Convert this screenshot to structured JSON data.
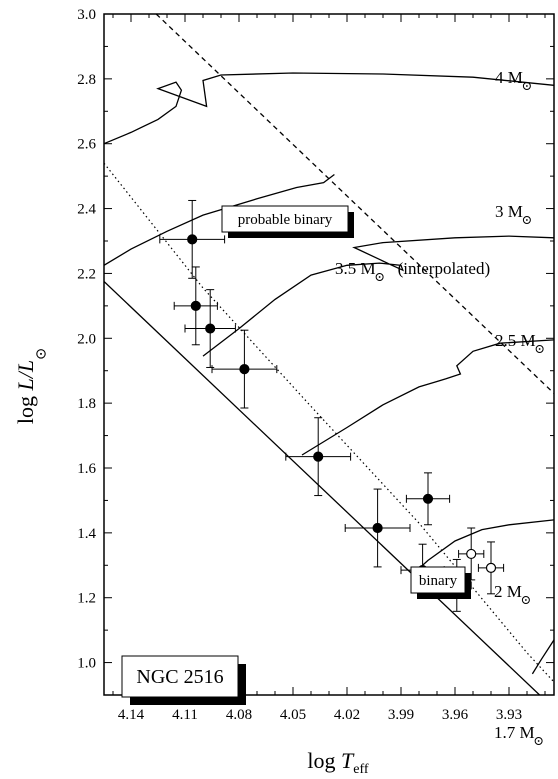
{
  "chart_data": {
    "type": "scatter",
    "title": "",
    "xlabel": {
      "main": "log ",
      "symbol": "T",
      "sub": "eff"
    },
    "ylabel": {
      "main": "log ",
      "symbol": "L/L",
      "sub": "⊙"
    },
    "xlim": [
      4.155,
      3.905
    ],
    "ylim": [
      0.9,
      3.0
    ],
    "x_reversed": true,
    "grid": false,
    "xticks": [
      "4.14",
      "4.11",
      "4.08",
      "4.05",
      "4.02",
      "3.99",
      "3.96",
      "3.93"
    ],
    "yticks": [
      "1.0",
      "1.2",
      "1.4",
      "1.6",
      "1.8",
      "2.0",
      "2.2",
      "2.4",
      "2.6",
      "2.8",
      "3.0"
    ],
    "cluster_label": "NGC 2516",
    "annotations": [
      {
        "text": "probable binary"
      },
      {
        "text": "binary"
      }
    ],
    "track_labels": [
      {
        "mass": "4",
        "unit": "M",
        "note": ""
      },
      {
        "mass": "3.5",
        "unit": "M",
        "note": "(interpolated)"
      },
      {
        "mass": "3",
        "unit": "M",
        "note": ""
      },
      {
        "mass": "2.5",
        "unit": "M",
        "note": ""
      },
      {
        "mass": "2",
        "unit": "M",
        "note": ""
      },
      {
        "mass": "1.7",
        "unit": "M",
        "note": ""
      }
    ],
    "series": [
      {
        "marker": "filled",
        "points": [
          {
            "x": 4.106,
            "y": 2.305,
            "xerr": 0.018,
            "yerr": 0.12
          },
          {
            "x": 4.104,
            "y": 2.1,
            "xerr": 0.012,
            "yerr": 0.12
          },
          {
            "x": 4.096,
            "y": 2.03,
            "xerr": 0.014,
            "yerr": 0.12
          },
          {
            "x": 4.077,
            "y": 1.905,
            "xerr": 0.018,
            "yerr": 0.12
          },
          {
            "x": 4.036,
            "y": 1.635,
            "xerr": 0.018,
            "yerr": 0.12
          },
          {
            "x": 4.003,
            "y": 1.415,
            "xerr": 0.018,
            "yerr": 0.12
          },
          {
            "x": 3.975,
            "y": 1.505,
            "xerr": 0.012,
            "yerr": 0.08
          },
          {
            "x": 3.978,
            "y": 1.285,
            "xerr": 0.012,
            "yerr": 0.08
          }
        ]
      },
      {
        "marker": "open",
        "points": [
          {
            "x": 3.951,
            "y": 1.335,
            "xerr": 0.007,
            "yerr": 0.08
          },
          {
            "x": 3.94,
            "y": 1.292,
            "xerr": 0.007,
            "yerr": 0.08
          },
          {
            "x": 3.959,
            "y": 1.238,
            "xerr": 0.008,
            "yerr": 0.08
          }
        ]
      }
    ],
    "lines": [
      {
        "kind": "zams",
        "style": "solid",
        "x": [
          4.155,
          3.913
        ],
        "y": [
          2.175,
          0.9
        ]
      },
      {
        "kind": "upper-limit",
        "style": "dashed",
        "x": [
          4.126,
          3.905
        ],
        "y": [
          3.0,
          1.83
        ]
      },
      {
        "kind": "dotted-sequence",
        "style": "dotted",
        "x": [
          4.155,
          4.1,
          4.04,
          3.98,
          3.92,
          3.905
        ],
        "y": [
          2.54,
          2.155,
          1.79,
          1.43,
          1.03,
          0.94
        ]
      },
      {
        "kind": "track-4",
        "style": "solid",
        "x": [
          4.155,
          4.14,
          4.125,
          4.115,
          4.112,
          4.115,
          4.125,
          4.098,
          4.1,
          4.09,
          4.05,
          4.0,
          3.95,
          3.905
        ],
        "y": [
          2.6,
          2.635,
          2.675,
          2.715,
          2.765,
          2.79,
          2.77,
          2.715,
          2.795,
          2.812,
          2.818,
          2.815,
          2.805,
          2.78
        ]
      },
      {
        "kind": "track-3",
        "style": "solid",
        "x": [
          4.155,
          4.14,
          4.12,
          4.1,
          4.07,
          4.048,
          4.033,
          4.027
        ],
        "y": [
          2.225,
          2.275,
          2.33,
          2.38,
          2.43,
          2.465,
          2.48,
          2.505
        ]
      },
      {
        "kind": "track-2_5",
        "style": "solid",
        "x": [
          4.1,
          4.08,
          4.06,
          4.04,
          4.02,
          4.002,
          3.99,
          3.989,
          3.995,
          4.016,
          4.0,
          3.96,
          3.93,
          3.905
        ],
        "y": [
          1.945,
          2.03,
          2.12,
          2.195,
          2.225,
          2.232,
          2.225,
          2.21,
          2.225,
          2.28,
          2.295,
          2.31,
          2.315,
          2.31
        ]
      },
      {
        "kind": "track-2",
        "style": "solid",
        "x": [
          4.045,
          4.02,
          4.0,
          3.98,
          3.965,
          3.957,
          3.959,
          3.95,
          3.935,
          3.905
        ],
        "y": [
          1.64,
          1.725,
          1.795,
          1.85,
          1.875,
          1.89,
          1.915,
          1.96,
          1.985,
          1.995
        ]
      },
      {
        "kind": "track-1_7",
        "style": "solid",
        "x": [
          3.984,
          3.975,
          3.96,
          3.945,
          3.93,
          3.905
        ],
        "y": [
          1.27,
          1.315,
          1.375,
          1.41,
          1.425,
          1.44
        ]
      },
      {
        "kind": "track-low",
        "style": "solid",
        "x": [
          3.917,
          3.912,
          3.905
        ],
        "y": [
          0.965,
          1.01,
          1.07
        ]
      }
    ]
  }
}
